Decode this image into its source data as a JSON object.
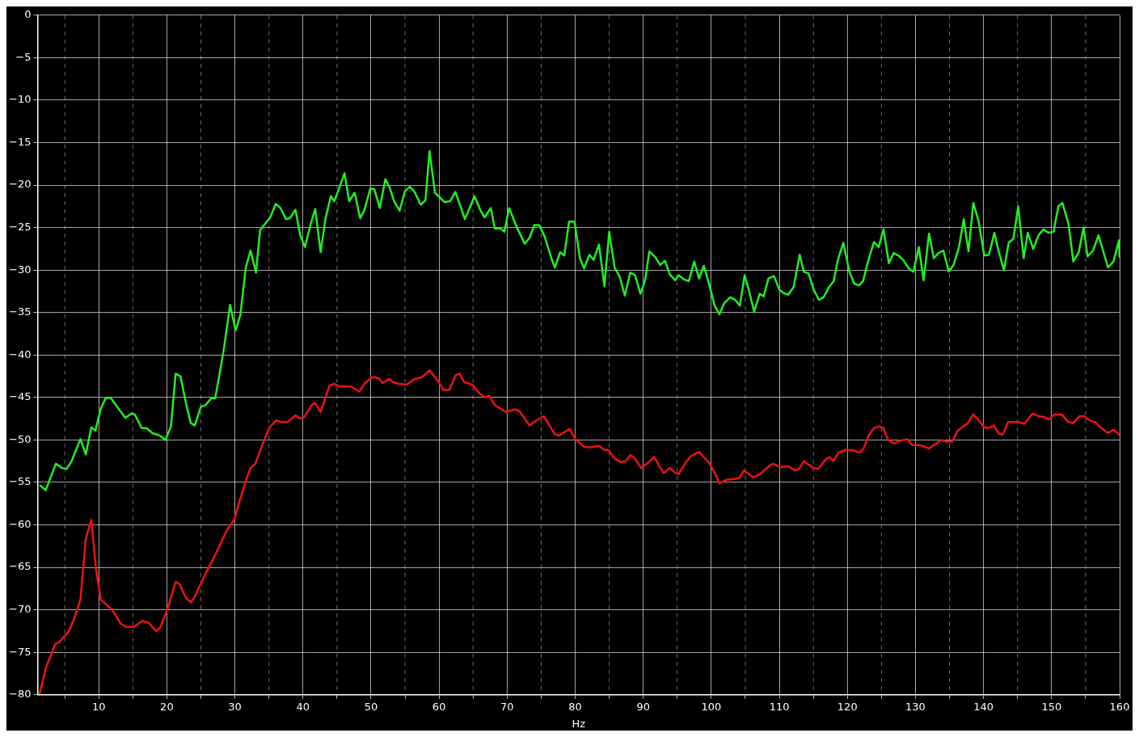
{
  "chart_data": {
    "type": "line",
    "xlabel": "Hz",
    "xlim": [
      1,
      160
    ],
    "ylim": [
      -80,
      0
    ],
    "xticks": [
      {
        "value": 5,
        "label": null
      },
      10,
      {
        "value": 15,
        "label": null
      },
      20,
      {
        "value": 25,
        "label": null
      },
      30,
      {
        "value": 35,
        "label": null
      },
      40,
      {
        "value": 45,
        "label": null
      },
      50,
      {
        "value": 55,
        "label": null
      },
      60,
      {
        "value": 65,
        "label": null
      },
      70,
      {
        "value": 75,
        "label": null
      },
      80,
      {
        "value": 85,
        "label": null
      },
      90,
      {
        "value": 95,
        "label": null
      },
      100,
      {
        "value": 105,
        "label": null
      },
      110,
      {
        "value": 115,
        "label": null
      },
      120,
      {
        "value": 125,
        "label": null
      },
      130,
      {
        "value": 135,
        "label": null
      },
      140,
      {
        "value": 145,
        "label": null
      },
      150,
      {
        "value": 155,
        "label": null
      },
      160
    ],
    "yticks": [
      0,
      -5,
      -10,
      -15,
      -20,
      -25,
      -30,
      -35,
      -40,
      -45,
      -50,
      -55,
      -60,
      -65,
      -70,
      -75,
      -80
    ],
    "grid": true,
    "marker": "none",
    "line_style": "solid",
    "series": [
      {
        "color": "#22ee22",
        "x": [
          1.3,
          2.2,
          3.7,
          4.6,
          5.3,
          6.0,
          7.3,
          8.1,
          8.9,
          9.5,
          10.3,
          11.0,
          11.7,
          13.9,
          14.8,
          15.3,
          16.3,
          17.0,
          17.9,
          19.0,
          19.8,
          20.6,
          21.3,
          22.0,
          22.8,
          23.5,
          24.1,
          25.0,
          25.7,
          26.5,
          27.1,
          28.3,
          29.3,
          30.1,
          30.8,
          31.6,
          32.3,
          33.1,
          33.7,
          35.2,
          36.0,
          36.7,
          37.5,
          38.1,
          38.9,
          39.6,
          40.3,
          41.1,
          41.8,
          42.6,
          43.3,
          44.1,
          44.6,
          45.4,
          46.1,
          46.8,
          47.6,
          48.4,
          49.0,
          49.9,
          50.5,
          51.3,
          52.1,
          52.7,
          53.4,
          54.2,
          55.0,
          55.7,
          56.4,
          57.3,
          58.0,
          58.6,
          59.4,
          60.8,
          61.6,
          62.4,
          63.8,
          64.6,
          65.2,
          66.1,
          66.7,
          67.6,
          68.2,
          69.0,
          69.6,
          70.3,
          71.5,
          72.6,
          73.3,
          74.0,
          74.7,
          75.5,
          76.5,
          77.0,
          77.8,
          78.4,
          79.1,
          79.9,
          80.7,
          81.3,
          82.1,
          82.7,
          83.5,
          84.3,
          85.0,
          85.8,
          86.5,
          87.3,
          88.1,
          88.8,
          89.6,
          90.3,
          90.9,
          91.8,
          92.5,
          93.2,
          93.9,
          94.7,
          95.2,
          96.0,
          96.7,
          97.5,
          98.2,
          98.9,
          99.7,
          100.5,
          101.2,
          101.9,
          102.8,
          103.5,
          104.2,
          104.9,
          105.6,
          106.3,
          107.1,
          107.7,
          108.4,
          109.2,
          110.0,
          110.6,
          111.3,
          112.1,
          113.0,
          113.6,
          114.3,
          115.0,
          115.8,
          116.5,
          117.3,
          118.0,
          118.6,
          119.4,
          120.3,
          121.0,
          121.7,
          122.3,
          123.1,
          123.9,
          124.6,
          125.3,
          126.1,
          126.8,
          127.5,
          128.2,
          129.0,
          129.7,
          130.5,
          131.2,
          132.0,
          132.7,
          133.4,
          134.1,
          134.9,
          135.6,
          136.4,
          137.1,
          137.8,
          138.5,
          139.3,
          140.1,
          140.8,
          141.6,
          142.2,
          143.0,
          143.7,
          144.4,
          145.1,
          145.9,
          146.5,
          147.3,
          148.1,
          148.8,
          149.5,
          150.3,
          151.0,
          151.6,
          152.5,
          153.2,
          154.0,
          154.7,
          155.3,
          156.1,
          156.9,
          158.3,
          159.1,
          159.9,
          160
        ],
        "values": [
          -55.3,
          -55.9,
          -52.8,
          -53.3,
          -53.4,
          -52.5,
          -49.9,
          -51.7,
          -48.5,
          -48.9,
          -46.3,
          -45.1,
          -45.0,
          -47.4,
          -46.9,
          -47.0,
          -48.6,
          -48.6,
          -49.2,
          -49.5,
          -50.0,
          -48.4,
          -42.2,
          -42.5,
          -45.6,
          -48.0,
          -48.3,
          -46.1,
          -45.9,
          -45.1,
          -45.1,
          -39.7,
          -34.1,
          -37.1,
          -35.3,
          -29.7,
          -27.7,
          -30.3,
          -25.3,
          -23.8,
          -22.2,
          -22.7,
          -24.0,
          -23.9,
          -22.9,
          -25.9,
          -27.3,
          -24.7,
          -22.8,
          -27.9,
          -24.0,
          -21.3,
          -21.9,
          -20.2,
          -18.6,
          -21.9,
          -20.9,
          -23.9,
          -23.0,
          -20.4,
          -20.5,
          -22.7,
          -19.3,
          -20.2,
          -21.9,
          -23.0,
          -20.7,
          -20.2,
          -20.8,
          -22.3,
          -21.8,
          -16.0,
          -20.9,
          -22.0,
          -21.9,
          -20.8,
          -24.0,
          -22.5,
          -21.3,
          -23.0,
          -23.8,
          -22.7,
          -25.1,
          -25.1,
          -25.5,
          -22.7,
          -25.1,
          -26.9,
          -26.2,
          -24.7,
          -24.7,
          -26.0,
          -28.6,
          -29.7,
          -27.9,
          -28.3,
          -24.3,
          -24.3,
          -28.6,
          -29.8,
          -28.2,
          -28.8,
          -27.0,
          -31.9,
          -25.5,
          -29.7,
          -30.7,
          -33.0,
          -30.3,
          -30.6,
          -32.8,
          -31.1,
          -27.8,
          -28.5,
          -29.4,
          -28.9,
          -30.5,
          -31.2,
          -30.6,
          -31.1,
          -31.3,
          -29.0,
          -31.0,
          -29.5,
          -31.7,
          -34.2,
          -35.2,
          -33.9,
          -33.2,
          -33.5,
          -34.2,
          -30.6,
          -32.6,
          -34.9,
          -32.8,
          -33.1,
          -31.0,
          -30.7,
          -32.3,
          -32.7,
          -32.9,
          -32.0,
          -28.2,
          -30.2,
          -30.4,
          -32.2,
          -33.5,
          -33.2,
          -32.0,
          -31.3,
          -28.8,
          -26.8,
          -30.2,
          -31.6,
          -31.8,
          -31.3,
          -28.8,
          -26.7,
          -27.3,
          -25.2,
          -29.2,
          -28.0,
          -28.3,
          -28.8,
          -29.8,
          -30.2,
          -27.3,
          -31.2,
          -25.7,
          -28.6,
          -28.0,
          -27.7,
          -30.2,
          -29.4,
          -27.3,
          -24.0,
          -27.8,
          -22.1,
          -24.3,
          -28.3,
          -28.2,
          -25.6,
          -27.7,
          -30.0,
          -26.8,
          -26.3,
          -22.5,
          -28.6,
          -25.6,
          -27.5,
          -25.9,
          -25.2,
          -25.6,
          -25.5,
          -22.5,
          -22.1,
          -24.6,
          -29.0,
          -27.9,
          -25.0,
          -28.4,
          -27.7,
          -25.9,
          -29.7,
          -29.0,
          -26.5,
          -28.5
        ]
      },
      {
        "color": "#ee1111",
        "x": [
          1.3,
          2.2,
          3.6,
          4.2,
          5.6,
          6.3,
          7.3,
          8.1,
          8.9,
          9.6,
          10.3,
          11.0,
          11.9,
          13.2,
          14.0,
          15.2,
          16.4,
          17.3,
          18.4,
          19.0,
          20.1,
          21.3,
          21.9,
          22.8,
          23.5,
          24.0,
          25.7,
          26.7,
          28.0,
          28.9,
          29.9,
          30.6,
          31.7,
          32.3,
          33.0,
          34.2,
          35.1,
          36.1,
          36.8,
          37.7,
          38.9,
          39.6,
          40.2,
          41.2,
          41.7,
          42.6,
          43.9,
          44.6,
          45.3,
          46.3,
          47.0,
          48.3,
          49.0,
          50.0,
          50.6,
          51.2,
          51.7,
          52.7,
          53.3,
          54.1,
          55.2,
          56.5,
          57.5,
          58.6,
          59.9,
          60.6,
          61.5,
          62.4,
          63.0,
          63.7,
          64.9,
          65.9,
          66.7,
          67.4,
          68.2,
          69.8,
          71.2,
          71.8,
          73.3,
          74.1,
          75.4,
          77.0,
          77.6,
          79.2,
          80.0,
          81.3,
          82.1,
          82.8,
          83.5,
          84.3,
          84.9,
          85.8,
          86.7,
          87.4,
          88.1,
          88.7,
          89.7,
          90.7,
          91.6,
          92.3,
          93.0,
          93.9,
          94.6,
          95.2,
          96.2,
          97.0,
          98.2,
          99.0,
          99.7,
          100.6,
          101.2,
          102.2,
          103.3,
          104.1,
          104.8,
          106.2,
          107.2,
          108.6,
          109.1,
          110.1,
          111.3,
          112.3,
          112.9,
          113.6,
          115.0,
          115.7,
          116.8,
          117.4,
          117.9,
          118.7,
          119.7,
          120.8,
          121.8,
          122.4,
          123.1,
          123.9,
          124.7,
          125.3,
          126.0,
          126.9,
          127.7,
          128.8,
          129.5,
          130.6,
          132.0,
          132.9,
          133.8,
          134.6,
          135.4,
          136.1,
          137.0,
          137.6,
          138.5,
          139.2,
          140.1,
          140.8,
          141.5,
          142.2,
          142.8,
          143.6,
          145.2,
          146.0,
          147.2,
          148.1,
          148.9,
          149.6,
          150.4,
          151.5,
          152.5,
          153.2,
          154.1,
          154.8,
          155.6,
          156.4,
          157.3,
          158.3,
          159.1,
          160
        ],
        "values": [
          -79.9,
          -76.9,
          -74.0,
          -73.8,
          -72.5,
          -71.2,
          -68.8,
          -61.6,
          -59.4,
          -65.3,
          -68.8,
          -69.3,
          -69.9,
          -71.6,
          -72.0,
          -72.0,
          -71.3,
          -71.5,
          -72.5,
          -72.1,
          -69.9,
          -66.7,
          -67.0,
          -68.6,
          -69.1,
          -68.6,
          -65.7,
          -64.2,
          -62.0,
          -60.5,
          -59.4,
          -57.4,
          -54.6,
          -53.3,
          -52.8,
          -50.2,
          -48.5,
          -47.7,
          -47.9,
          -47.9,
          -47.1,
          -47.5,
          -47.3,
          -46.0,
          -45.6,
          -46.7,
          -43.6,
          -43.4,
          -43.7,
          -43.7,
          -43.7,
          -44.3,
          -43.4,
          -42.7,
          -42.6,
          -42.8,
          -43.3,
          -42.8,
          -43.2,
          -43.4,
          -43.5,
          -42.8,
          -42.6,
          -41.8,
          -43.1,
          -44.1,
          -44.1,
          -42.4,
          -42.2,
          -43.2,
          -43.5,
          -44.5,
          -45.0,
          -44.8,
          -45.9,
          -46.7,
          -46.4,
          -46.6,
          -48.3,
          -47.8,
          -47.2,
          -49.3,
          -49.5,
          -48.7,
          -49.9,
          -50.8,
          -50.9,
          -50.8,
          -50.7,
          -51.2,
          -51.2,
          -52.2,
          -52.6,
          -52.5,
          -51.8,
          -52.1,
          -53.3,
          -52.7,
          -52.0,
          -53.0,
          -53.9,
          -53.3,
          -53.8,
          -54.0,
          -52.7,
          -51.9,
          -51.4,
          -52.1,
          -52.7,
          -54.0,
          -55.1,
          -54.7,
          -54.6,
          -54.5,
          -53.6,
          -54.4,
          -54.0,
          -53.0,
          -52.8,
          -53.2,
          -53.1,
          -53.6,
          -53.4,
          -52.5,
          -53.3,
          -53.4,
          -52.3,
          -52.0,
          -52.5,
          -51.5,
          -51.2,
          -51.2,
          -51.5,
          -51.0,
          -49.5,
          -48.6,
          -48.4,
          -48.6,
          -50.0,
          -50.4,
          -50.1,
          -49.9,
          -50.6,
          -50.6,
          -51.0,
          -50.5,
          -50.0,
          -50.2,
          -50.2,
          -49.0,
          -48.4,
          -48.1,
          -47.0,
          -47.6,
          -48.5,
          -48.6,
          -48.3,
          -49.2,
          -49.4,
          -47.9,
          -47.9,
          -48.1,
          -46.9,
          -47.2,
          -47.3,
          -47.6,
          -47.0,
          -47.0,
          -47.9,
          -48.0,
          -47.2,
          -47.2,
          -47.7,
          -47.9,
          -48.6,
          -49.2,
          -48.8,
          -49.4
        ]
      }
    ]
  }
}
